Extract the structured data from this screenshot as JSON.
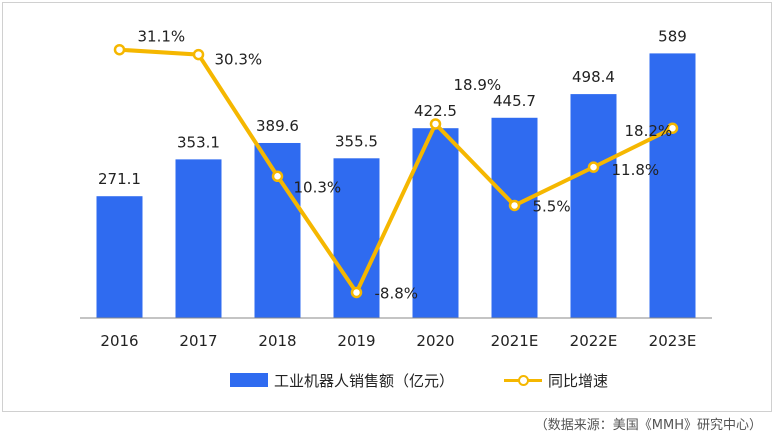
{
  "colors": {
    "bar": "#2F6BF0",
    "line": "#F5B700",
    "axis": "#888888",
    "text": "#222222"
  },
  "chart_data": {
    "type": "bar+line",
    "categories": [
      "2016",
      "2017",
      "2018",
      "2019",
      "2020",
      "2021E",
      "2022E",
      "2023E"
    ],
    "series": [
      {
        "name": "工业机器人销售额（亿元）",
        "type": "bar",
        "axis": "left",
        "values": [
          271.1,
          353.1,
          389.6,
          355.5,
          422.5,
          445.7,
          498.4,
          589
        ],
        "labels": [
          "271.1",
          "353.1",
          "389.6",
          "355.5",
          "422.5",
          "445.7",
          "498.4",
          "589"
        ]
      },
      {
        "name": "同比增速",
        "type": "line",
        "axis": "right",
        "values": [
          31.1,
          30.3,
          10.3,
          -8.8,
          18.9,
          5.5,
          11.8,
          18.2
        ],
        "labels": [
          "31.1%",
          "30.3%",
          "10.3%",
          "-8.8%",
          "18.9%",
          "5.5%",
          "11.8%",
          "18.2%"
        ]
      }
    ],
    "ylim_left": [
      0,
      650
    ],
    "ylim_right": [
      -13,
      35
    ],
    "grid": false,
    "legend_position": "bottom"
  },
  "legend": {
    "bar_label": "工业机器人销售额（亿元）",
    "line_label": "同比增速"
  },
  "source": "（数据来源：美国《MMH》研究中心）"
}
